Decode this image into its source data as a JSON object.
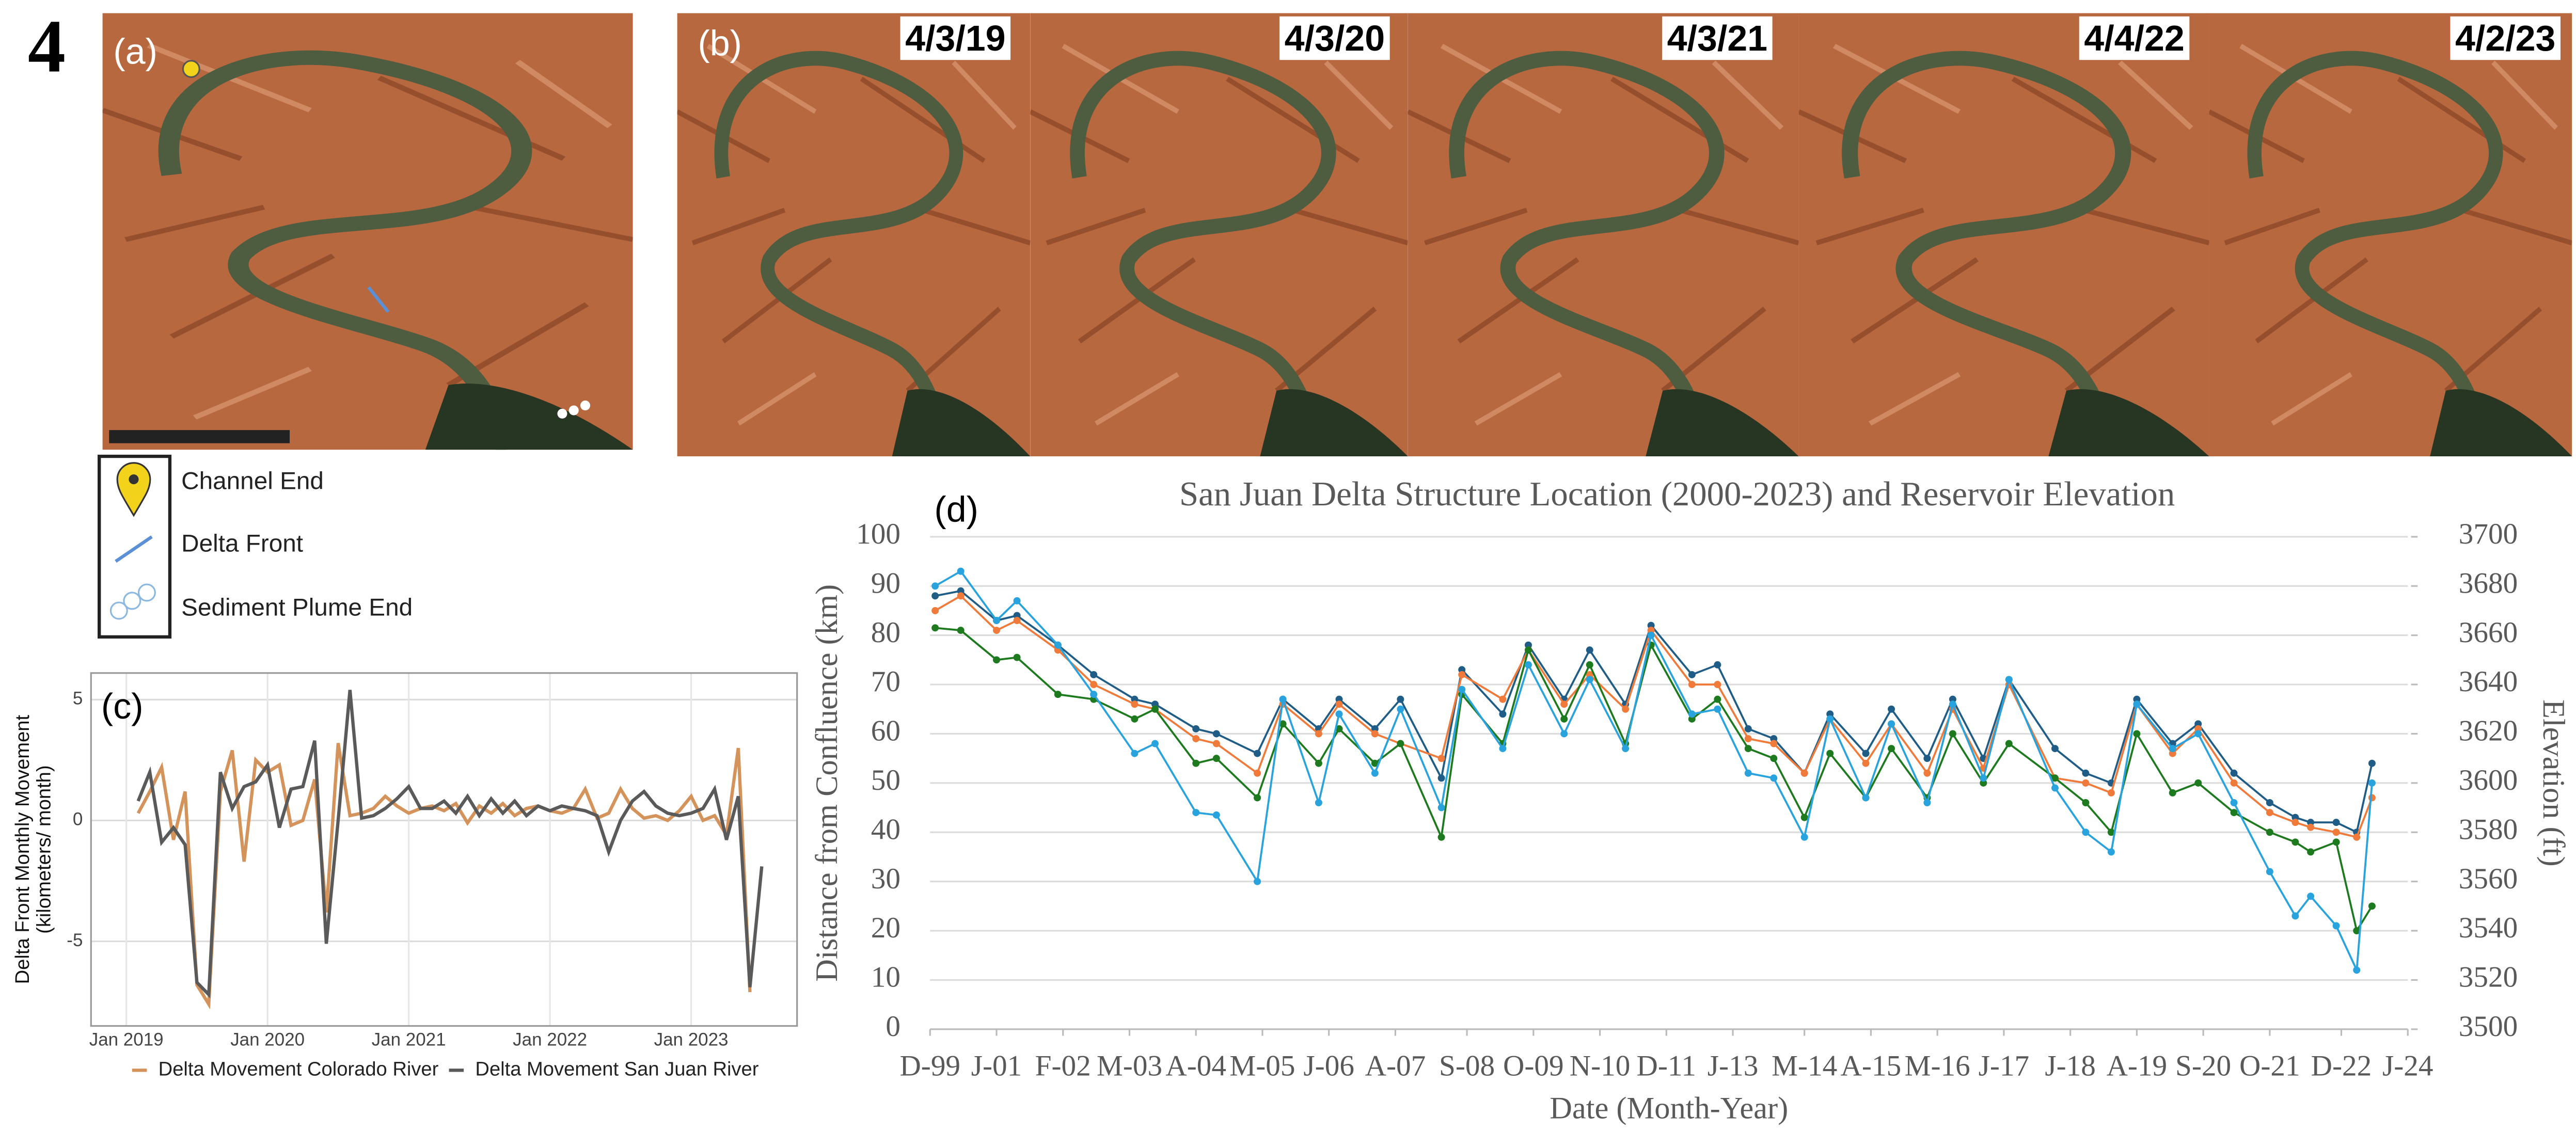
{
  "figure_number": "4",
  "panel_a": {
    "label": "(a)",
    "legend": [
      "Channel End",
      "Delta Front",
      "Sediment Plume End"
    ]
  },
  "panel_b": {
    "label": "(b)",
    "dates": [
      "4/3/19",
      "4/3/20",
      "4/3/21",
      "4/4/22",
      "4/2/23"
    ]
  },
  "chart_data": [
    {
      "type": "line",
      "panel_label": "(c)",
      "ylabel": [
        "Delta Front Monthly Movement",
        "(kilometers/ month)"
      ],
      "x": [
        "2019-02",
        "2019-03",
        "2019-04",
        "2019-05",
        "2019-06",
        "2019-07",
        "2019-08",
        "2019-09",
        "2019-10",
        "2019-11",
        "2019-12",
        "2020-01",
        "2020-02",
        "2020-03",
        "2020-04",
        "2020-05",
        "2020-06",
        "2020-07",
        "2020-08",
        "2020-09",
        "2020-10",
        "2020-11",
        "2020-12",
        "2021-01",
        "2021-02",
        "2021-03",
        "2021-04",
        "2021-05",
        "2021-06",
        "2021-07",
        "2021-08",
        "2021-09",
        "2021-10",
        "2021-11",
        "2021-12",
        "2022-01",
        "2022-02",
        "2022-03",
        "2022-04",
        "2022-05",
        "2022-06",
        "2022-07",
        "2022-08",
        "2022-09",
        "2022-10",
        "2022-11",
        "2022-12",
        "2023-01",
        "2023-02",
        "2023-03",
        "2023-04",
        "2023-05",
        "2023-06",
        "2023-07"
      ],
      "series": [
        {
          "name": "Delta Movement Colorado River",
          "color": "#d4935a",
          "values": [
            0.3,
            1.2,
            2.2,
            -0.8,
            1.2,
            -6.8,
            -7.6,
            1.2,
            2.9,
            -1.7,
            2.5,
            2.0,
            2.3,
            -0.2,
            0.0,
            1.7,
            -3.8,
            3.2,
            0.2,
            0.3,
            0.5,
            1.0,
            0.6,
            0.3,
            0.5,
            0.6,
            0.4,
            0.7,
            -0.1,
            0.6,
            0.3,
            0.7,
            0.2,
            0.5,
            0.6,
            0.4,
            0.3,
            0.5,
            1.3,
            0.1,
            0.3,
            1.3,
            0.5,
            0.1,
            0.2,
            0.0,
            0.4,
            1.0,
            0.0,
            0.2,
            -0.6,
            3.0,
            -7.1,
            null
          ]
        },
        {
          "name": "Delta Movement San Juan River",
          "color": "#5a5a5a",
          "values": [
            0.8,
            2.0,
            -0.9,
            -0.3,
            -1.0,
            -6.7,
            -7.2,
            2.0,
            0.5,
            1.4,
            1.6,
            2.3,
            -0.3,
            1.3,
            1.4,
            3.3,
            -5.1,
            0.0,
            5.4,
            0.1,
            0.2,
            0.5,
            0.9,
            1.4,
            0.5,
            0.5,
            0.8,
            0.3,
            1.0,
            0.2,
            0.9,
            0.3,
            0.8,
            0.2,
            0.6,
            0.4,
            0.6,
            0.5,
            0.4,
            0.2,
            -1.3,
            0.0,
            0.8,
            1.2,
            0.6,
            0.3,
            0.2,
            0.3,
            0.5,
            1.3,
            -0.8,
            1.0,
            -6.9,
            -1.9
          ]
        }
      ],
      "xlim": [
        "2018-10",
        "2023-10"
      ],
      "xticks": [
        {
          "value": "2019-01",
          "label": "Jan 2019"
        },
        {
          "value": "2020-01",
          "label": "Jan 2020"
        },
        {
          "value": "2021-01",
          "label": "Jan 2021"
        },
        {
          "value": "2022-01",
          "label": "Jan 2022"
        },
        {
          "value": "2023-01",
          "label": "Jan 2023"
        }
      ],
      "ylim": [
        -8.5,
        6.1
      ],
      "yticks": [
        -5,
        0,
        5
      ],
      "grid": true,
      "legend": "bottom"
    },
    {
      "type": "line",
      "panel_label": "(d)",
      "title": "San Juan Delta Structure Location (2000-2023) and Reservoir Elevation",
      "xlabel": "Date (Month-Year)",
      "ylabel": "Distance from Confluence (km)",
      "y2label": "Elevation (ft)",
      "x": [
        "2000-01",
        "2000-06",
        "2001-01",
        "2001-05",
        "2002-01",
        "2002-08",
        "2003-04",
        "2003-08",
        "2004-04",
        "2004-08",
        "2005-04",
        "2005-09",
        "2006-04",
        "2006-08",
        "2007-03",
        "2007-08",
        "2008-04",
        "2008-08",
        "2009-04",
        "2009-09",
        "2010-04",
        "2010-09",
        "2011-04",
        "2011-09",
        "2012-05",
        "2012-10",
        "2013-04",
        "2013-09",
        "2014-03",
        "2014-08",
        "2015-03",
        "2015-08",
        "2016-03",
        "2016-08",
        "2017-02",
        "2017-07",
        "2018-04",
        "2018-10",
        "2019-03",
        "2019-08",
        "2020-03",
        "2020-08",
        "2021-03",
        "2021-10",
        "2022-03",
        "2022-06",
        "2022-11",
        "2023-03",
        "2023-06"
      ],
      "series": [
        {
          "color": "#1f5d87",
          "values": [
            88,
            89,
            83,
            84,
            78,
            72,
            67,
            66,
            61,
            60,
            56,
            67,
            61,
            67,
            61,
            67,
            51,
            73,
            64,
            78,
            67,
            77,
            66,
            82,
            72,
            74,
            61,
            59,
            52,
            64,
            56,
            65,
            55,
            67,
            55,
            71,
            57,
            52,
            50,
            67,
            58,
            62,
            52,
            46,
            43,
            42,
            42,
            40,
            54
          ]
        },
        {
          "color": "#f07a3a",
          "values": [
            85,
            88,
            81,
            83,
            77,
            70,
            66,
            65,
            59,
            58,
            52,
            66,
            60,
            66,
            60,
            58,
            55,
            72,
            67,
            77,
            66,
            72,
            65,
            81,
            70,
            70,
            59,
            58,
            52,
            63,
            54,
            62,
            52,
            65,
            53,
            70,
            51,
            50,
            48,
            66,
            56,
            61,
            50,
            44,
            42,
            41,
            40,
            39,
            47
          ]
        },
        {
          "color": "#1e7a1e",
          "values": [
            81.5,
            81,
            75,
            75.5,
            68,
            67,
            63,
            65,
            54,
            55,
            47,
            62,
            54,
            61,
            54,
            58,
            39,
            68,
            58,
            77,
            63,
            74,
            58,
            78,
            63,
            67,
            57,
            55,
            43,
            56,
            47,
            57,
            47,
            60,
            50,
            58,
            51,
            46,
            40,
            60,
            48,
            50,
            44,
            40,
            38,
            36,
            38,
            20,
            25
          ]
        },
        {
          "color": "#29a3dd",
          "axis": "y2",
          "values": [
            3680,
            3686,
            3666,
            3674,
            3656,
            3636,
            3612,
            3616,
            3588,
            3587,
            3560,
            3634,
            3592,
            3628,
            3604,
            3630,
            3590,
            3638,
            3614,
            3648,
            3620,
            3642,
            3614,
            3660,
            3628,
            3630,
            3604,
            3602,
            3578,
            3626,
            3594,
            3624,
            3592,
            3632,
            3602,
            3642,
            3598,
            3580,
            3572,
            3632,
            3614,
            3620,
            3592,
            3564,
            3546,
            3554,
            3542,
            3524,
            3600
          ]
        }
      ],
      "xlim": [
        "1999-12",
        "2024-01"
      ],
      "xticks": [
        {
          "value": "1999-12",
          "label": "D-99"
        },
        {
          "value": "2001-01",
          "label": "J-01"
        },
        {
          "value": "2002-02",
          "label": "F-02"
        },
        {
          "value": "2003-03",
          "label": "M-03"
        },
        {
          "value": "2004-04",
          "label": "A-04"
        },
        {
          "value": "2005-05",
          "label": "M-05"
        },
        {
          "value": "2006-06",
          "label": "J-06"
        },
        {
          "value": "2007-07",
          "label": "A-07"
        },
        {
          "value": "2008-09",
          "label": "S-08"
        },
        {
          "value": "2009-10",
          "label": "O-09"
        },
        {
          "value": "2010-11",
          "label": "N-10"
        },
        {
          "value": "2011-12",
          "label": "D-11"
        },
        {
          "value": "2013-01",
          "label": "J-13"
        },
        {
          "value": "2014-03",
          "label": "M-14"
        },
        {
          "value": "2015-04",
          "label": "A-15"
        },
        {
          "value": "2016-05",
          "label": "M-16"
        },
        {
          "value": "2017-06",
          "label": "J-17"
        },
        {
          "value": "2018-07",
          "label": "J-18"
        },
        {
          "value": "2019-08",
          "label": "A-19"
        },
        {
          "value": "2020-09",
          "label": "S-20"
        },
        {
          "value": "2021-10",
          "label": "O-21"
        },
        {
          "value": "2022-12",
          "label": "D-22"
        },
        {
          "value": "2024-01",
          "label": "J-24"
        }
      ],
      "ylim": [
        0,
        100
      ],
      "yticks": [
        0,
        10,
        20,
        30,
        40,
        50,
        60,
        70,
        80,
        90,
        100
      ],
      "y2lim": [
        3500,
        3700
      ],
      "y2ticks": [
        3500,
        3520,
        3540,
        3560,
        3580,
        3600,
        3620,
        3640,
        3660,
        3680,
        3700
      ],
      "grid": true,
      "markers": true
    }
  ]
}
